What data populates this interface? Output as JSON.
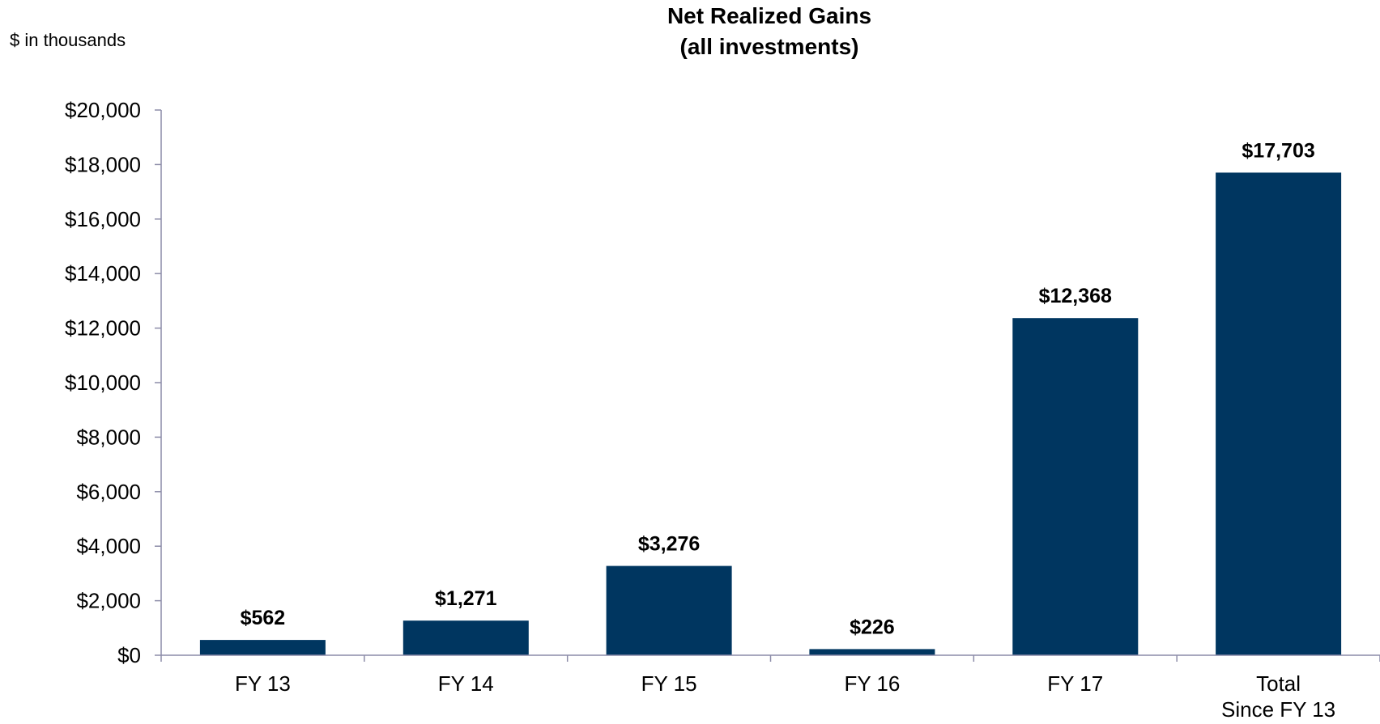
{
  "chart_data": {
    "type": "bar",
    "title_lines": [
      "Net Realized Gains",
      "(all investments)"
    ],
    "unit_label": "$ in thousands",
    "categories": [
      [
        "FY 13"
      ],
      [
        "FY 14"
      ],
      [
        "FY 15"
      ],
      [
        "FY 16"
      ],
      [
        "FY 17"
      ],
      [
        "Total",
        "Since FY 13"
      ]
    ],
    "values": [
      562,
      1271,
      3276,
      226,
      12368,
      17703
    ],
    "data_labels": [
      "$562",
      "$1,271",
      "$3,276",
      "$226",
      "$12,368",
      "$17,703"
    ],
    "ylim": [
      0,
      20000
    ],
    "yticks": [
      0,
      2000,
      4000,
      6000,
      8000,
      10000,
      12000,
      14000,
      16000,
      18000,
      20000
    ],
    "ytick_labels": [
      "$0",
      "$2,000",
      "$4,000",
      "$6,000",
      "$8,000",
      "$10,000",
      "$12,000",
      "$14,000",
      "$16,000",
      "$18,000",
      "$20,000"
    ],
    "grid": false,
    "legend": "none",
    "colors": {
      "bar": "#003660",
      "axis": "#8c8ca8"
    }
  }
}
